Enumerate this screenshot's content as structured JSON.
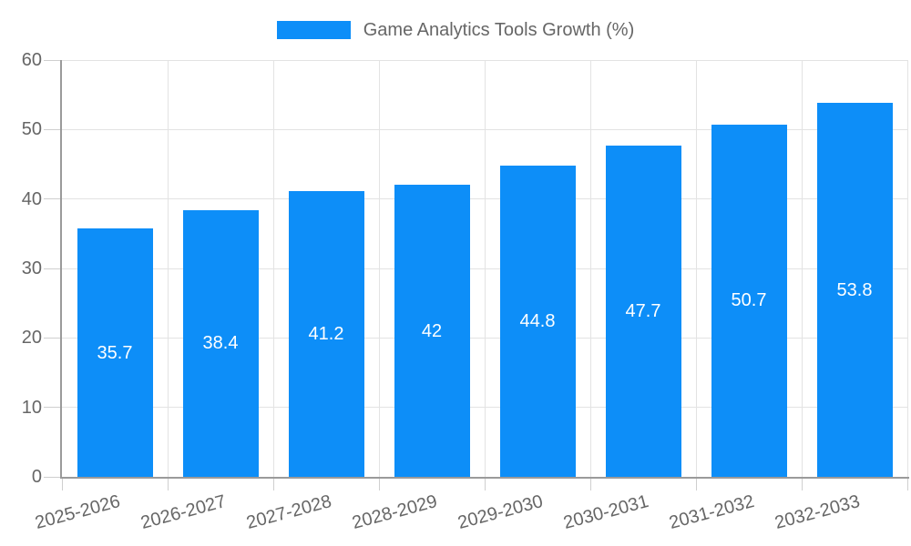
{
  "chart_data": {
    "type": "bar",
    "title": "Game Analytics Tools Growth (%)",
    "legend": [
      "Game Analytics Tools Growth (%)"
    ],
    "legend_position": "top",
    "categories": [
      "2025-2026",
      "2026-2027",
      "2027-2028",
      "2028-2029",
      "2029-2030",
      "2030-2031",
      "2031-2032",
      "2032-2033"
    ],
    "values": [
      35.7,
      38.4,
      41.2,
      42,
      44.8,
      47.7,
      50.7,
      53.8
    ],
    "value_labels": [
      "35.7",
      "38.4",
      "41.2",
      "42",
      "44.8",
      "47.7",
      "50.7",
      "53.8"
    ],
    "xlabel": "",
    "ylabel": "",
    "ylim": [
      0,
      60
    ],
    "yticks": [
      0,
      10,
      20,
      30,
      40,
      50,
      60
    ],
    "grid": true,
    "x_label_rotation_deg": -15,
    "bar_color": "#0d8ef8",
    "grid_color": "#e3e3e3",
    "tick_mark_color": "#cfcfcf",
    "axis_color": "#9a9a9a",
    "tick_text_color": "#666666",
    "value_text_color": "#ffffff",
    "background_color": "#ffffff"
  }
}
